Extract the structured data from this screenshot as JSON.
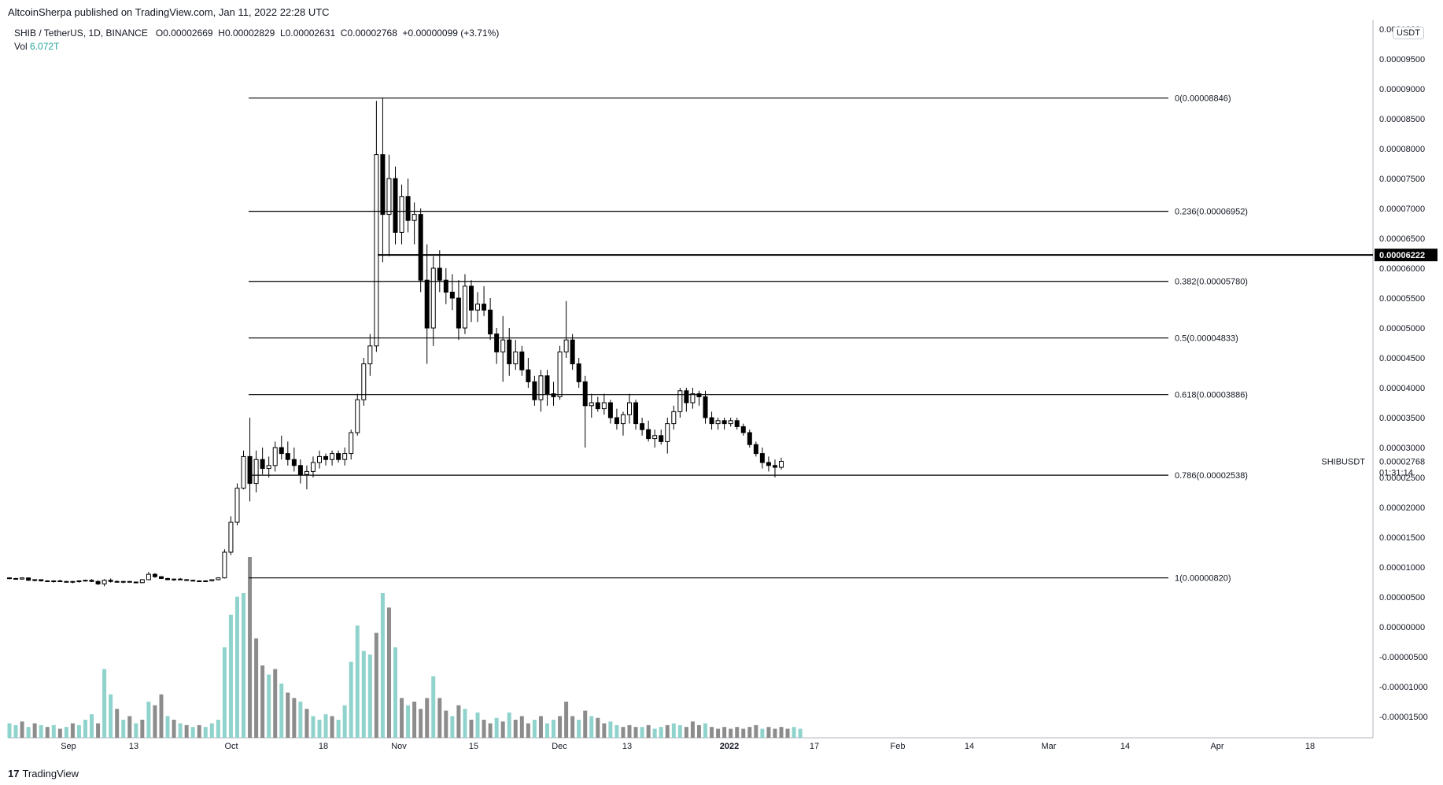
{
  "header": {
    "published": "AltcoinSherpa published on TradingView.com, Jan 11, 2022 22:28 UTC"
  },
  "legend": {
    "symbol": "SHIB / TetherUS, 1D, BINANCE",
    "o_label": "O",
    "o": "0.00002669",
    "h_label": "H",
    "h": "0.00002829",
    "l_label": "L",
    "l": "0.00002631",
    "c_label": "C",
    "c": "0.00002768",
    "change": "+0.00000099 (+3.71%)",
    "vol_label": "Vol",
    "vol": "6.072T"
  },
  "currency_badge": "USDT",
  "footer": {
    "logo_text": "TradingView"
  },
  "colors": {
    "up_volume": "#8fd3cc",
    "down_volume": "#8c8c8c",
    "candle_up": "#ffffff",
    "candle_down": "#000000",
    "line": "#000000",
    "price_tag_bg": "#000000"
  },
  "chart_data": {
    "type": "candlestick",
    "symbol_label": "SHIBUSDT",
    "last_price": "0.00002768",
    "countdown": "01:31:14",
    "price_tag": "0.00006222",
    "horizontal_line_price": 6.222e-05,
    "ylim": [
      -1.85e-05,
      1.05e-05
    ],
    "y_ticks": [
      "0.0001000",
      "0.00009500",
      "0.00009000",
      "0.00008500",
      "0.00008000",
      "0.00007500",
      "0.00007000",
      "0.00006500",
      "0.00006000",
      "0.00005500",
      "0.00005000",
      "0.00004500",
      "0.00004000",
      "0.00003500",
      "0.00003000",
      "0.00002500",
      "0.00002000",
      "0.00001500",
      "0.00001000",
      "0.00000500",
      "0.00000000",
      "-0.00000500",
      "-0.00001000",
      "-0.00001500"
    ],
    "x_ticks": [
      "Sep",
      "13",
      "Oct",
      "18",
      "Nov",
      "15",
      "Dec",
      "13",
      "2022",
      "17",
      "Feb",
      "14",
      "Mar",
      "14",
      "Apr",
      "18"
    ],
    "fib_levels": [
      {
        "label": "0(0.00008846)",
        "price": 8.846e-05
      },
      {
        "label": "0.236(0.00006952)",
        "price": 6.952e-05
      },
      {
        "label": "0.382(0.00005780)",
        "price": 5.78e-05
      },
      {
        "label": "0.5(0.00004833)",
        "price": 4.833e-05
      },
      {
        "label": "0.618(0.00003886)",
        "price": 3.886e-05
      },
      {
        "label": "0.786(0.00002538)",
        "price": 2.538e-05
      },
      {
        "label": "1(0.00000820)",
        "price": 8.2e-06
      }
    ],
    "candles_sample": [
      {
        "o": 8.2e-06,
        "h": 8.3e-06,
        "l": 8e-06,
        "c": 8.1e-06
      },
      {
        "o": 8.1e-06,
        "h": 8.2e-06,
        "l": 7.9e-06,
        "c": 8e-06
      },
      {
        "o": 8e-06,
        "h": 8.3e-06,
        "l": 7.9e-06,
        "c": 8.2e-06
      },
      {
        "o": 8.2e-06,
        "h": 8.2e-06,
        "l": 7.7e-06,
        "c": 7.8e-06
      },
      {
        "o": 7.8e-06,
        "h": 8e-06,
        "l": 7.6e-06,
        "c": 7.9e-06
      },
      {
        "o": 7.9e-06,
        "h": 7.9e-06,
        "l": 7.6e-06,
        "c": 7.7e-06
      },
      {
        "o": 7.7e-06,
        "h": 7.8e-06,
        "l": 7.5e-06,
        "c": 7.6e-06
      },
      {
        "o": 7.6e-06,
        "h": 7.8e-06,
        "l": 7.4e-06,
        "c": 7.7e-06
      },
      {
        "o": 7.7e-06,
        "h": 7.9e-06,
        "l": 7.5e-06,
        "c": 7.6e-06
      },
      {
        "o": 7.6e-06,
        "h": 7.7e-06,
        "l": 7.4e-06,
        "c": 7.5e-06
      },
      {
        "o": 7.5e-06,
        "h": 7.7e-06,
        "l": 7.3e-06,
        "c": 7.6e-06
      },
      {
        "o": 7.6e-06,
        "h": 7.8e-06,
        "l": 7.4e-06,
        "c": 7.7e-06
      },
      {
        "o": 7.7e-06,
        "h": 7.9e-06,
        "l": 7.6e-06,
        "c": 7.8e-06
      },
      {
        "o": 7.8e-06,
        "h": 8e-06,
        "l": 7.5e-06,
        "c": 7.6e-06
      },
      {
        "o": 7.6e-06,
        "h": 7.8e-06,
        "l": 7e-06,
        "c": 7.2e-06
      },
      {
        "o": 7.2e-06,
        "h": 8e-06,
        "l": 6.8e-06,
        "c": 7.8e-06
      },
      {
        "o": 7.8e-06,
        "h": 8.1e-06,
        "l": 7.4e-06,
        "c": 7.6e-06
      },
      {
        "o": 7.6e-06,
        "h": 7.8e-06,
        "l": 7.4e-06,
        "c": 7.5e-06
      },
      {
        "o": 7.5e-06,
        "h": 7.7e-06,
        "l": 7.3e-06,
        "c": 7.6e-06
      },
      {
        "o": 7.6e-06,
        "h": 7.7e-06,
        "l": 7.4e-06,
        "c": 7.5e-06
      },
      {
        "o": 7.5e-06,
        "h": 7.6e-06,
        "l": 7.3e-06,
        "c": 7.4e-06
      },
      {
        "o": 7.4e-06,
        "h": 8e-06,
        "l": 7.3e-06,
        "c": 7.9e-06
      },
      {
        "o": 7.9e-06,
        "h": 9.2e-06,
        "l": 7.8e-06,
        "c": 8.8e-06
      },
      {
        "o": 8.8e-06,
        "h": 9e-06,
        "l": 8.2e-06,
        "c": 8.4e-06
      },
      {
        "o": 8.4e-06,
        "h": 8.5e-06,
        "l": 8e-06,
        "c": 8.1e-06
      },
      {
        "o": 8.1e-06,
        "h": 8.2e-06,
        "l": 7.8e-06,
        "c": 7.9e-06
      },
      {
        "o": 7.9e-06,
        "h": 8.1e-06,
        "l": 7.7e-06,
        "c": 8e-06
      },
      {
        "o": 8e-06,
        "h": 8.2e-06,
        "l": 7.8e-06,
        "c": 7.9e-06
      },
      {
        "o": 7.9e-06,
        "h": 8e-06,
        "l": 7.7e-06,
        "c": 7.8e-06
      },
      {
        "o": 7.8e-06,
        "h": 7.9e-06,
        "l": 7.6e-06,
        "c": 7.7e-06
      },
      {
        "o": 7.7e-06,
        "h": 7.8e-06,
        "l": 7.5e-06,
        "c": 7.6e-06
      },
      {
        "o": 7.6e-06,
        "h": 7.8e-06,
        "l": 7.5e-06,
        "c": 7.7e-06
      },
      {
        "o": 7.7e-06,
        "h": 8e-06,
        "l": 7.6e-06,
        "c": 7.9e-06
      },
      {
        "o": 7.9e-06,
        "h": 8.3e-06,
        "l": 7.8e-06,
        "c": 8.2e-06
      },
      {
        "o": 8.2e-06,
        "h": 1.3e-05,
        "l": 8.1e-06,
        "c": 1.25e-05
      },
      {
        "o": 1.25e-05,
        "h": 1.85e-05,
        "l": 1.2e-05,
        "c": 1.75e-05
      },
      {
        "o": 1.75e-05,
        "h": 2.4e-05,
        "l": 1.7e-05,
        "c": 2.32e-05
      },
      {
        "o": 2.32e-05,
        "h": 2.95e-05,
        "l": 2.3e-05,
        "c": 2.85e-05
      },
      {
        "o": 2.85e-05,
        "h": 3.5e-05,
        "l": 2.1e-05,
        "c": 2.4e-05
      },
      {
        "o": 2.4e-05,
        "h": 2.95e-05,
        "l": 2.25e-05,
        "c": 2.8e-05
      },
      {
        "o": 2.8e-05,
        "h": 3e-05,
        "l": 2.55e-05,
        "c": 2.65e-05
      },
      {
        "o": 2.65e-05,
        "h": 2.85e-05,
        "l": 2.5e-05,
        "c": 2.7e-05
      },
      {
        "o": 2.7e-05,
        "h": 3.1e-05,
        "l": 2.6e-05,
        "c": 3e-05
      },
      {
        "o": 3e-05,
        "h": 3.2e-05,
        "l": 2.8e-05,
        "c": 2.9e-05
      },
      {
        "o": 2.9e-05,
        "h": 3.1e-05,
        "l": 2.7e-05,
        "c": 2.8e-05
      },
      {
        "o": 2.8e-05,
        "h": 3e-05,
        "l": 2.6e-05,
        "c": 2.7e-05
      },
      {
        "o": 2.7e-05,
        "h": 2.8e-05,
        "l": 2.4e-05,
        "c": 2.55e-05
      },
      {
        "o": 2.55e-05,
        "h": 2.7e-05,
        "l": 2.3e-05,
        "c": 2.6e-05
      },
      {
        "o": 2.6e-05,
        "h": 2.85e-05,
        "l": 2.5e-05,
        "c": 2.75e-05
      },
      {
        "o": 2.75e-05,
        "h": 2.95e-05,
        "l": 2.65e-05,
        "c": 2.85e-05
      },
      {
        "o": 2.85e-05,
        "h": 2.9e-05,
        "l": 2.7e-05,
        "c": 2.8e-05
      },
      {
        "o": 2.8e-05,
        "h": 2.95e-05,
        "l": 2.7e-05,
        "c": 2.9e-05
      },
      {
        "o": 2.9e-05,
        "h": 2.95e-05,
        "l": 2.75e-05,
        "c": 2.8e-05
      },
      {
        "o": 2.8e-05,
        "h": 3e-05,
        "l": 2.7e-05,
        "c": 2.9e-05
      },
      {
        "o": 2.9e-05,
        "h": 3.3e-05,
        "l": 2.8e-05,
        "c": 3.25e-05
      },
      {
        "o": 3.25e-05,
        "h": 3.9e-05,
        "l": 3.2e-05,
        "c": 3.8e-05
      },
      {
        "o": 3.8e-05,
        "h": 4.5e-05,
        "l": 3.7e-05,
        "c": 4.4e-05
      },
      {
        "o": 4.4e-05,
        "h": 4.9e-05,
        "l": 4.2e-05,
        "c": 4.7e-05
      },
      {
        "o": 4.7e-05,
        "h": 8.8e-05,
        "l": 4.6e-05,
        "c": 7.9e-05
      },
      {
        "o": 7.9e-05,
        "h": 8.85e-05,
        "l": 6.1e-05,
        "c": 6.9e-05
      },
      {
        "o": 6.9e-05,
        "h": 7.9e-05,
        "l": 6.2e-05,
        "c": 7.5e-05
      },
      {
        "o": 7.5e-05,
        "h": 7.7e-05,
        "l": 6.4e-05,
        "c": 6.6e-05
      },
      {
        "o": 6.6e-05,
        "h": 7.4e-05,
        "l": 6.4e-05,
        "c": 7.2e-05
      },
      {
        "o": 7.2e-05,
        "h": 7.5e-05,
        "l": 6.6e-05,
        "c": 6.8e-05
      },
      {
        "o": 6.8e-05,
        "h": 7.1e-05,
        "l": 6.4e-05,
        "c": 6.9e-05
      },
      {
        "o": 6.9e-05,
        "h": 7e-05,
        "l": 5.6e-05,
        "c": 5.8e-05
      },
      {
        "o": 5.8e-05,
        "h": 6.4e-05,
        "l": 4.4e-05,
        "c": 5e-05
      },
      {
        "o": 5e-05,
        "h": 6.2e-05,
        "l": 4.7e-05,
        "c": 6e-05
      },
      {
        "o": 6e-05,
        "h": 6.3e-05,
        "l": 5.6e-05,
        "c": 5.8e-05
      },
      {
        "o": 5.8e-05,
        "h": 6e-05,
        "l": 5.4e-05,
        "c": 5.6e-05
      },
      {
        "o": 5.6e-05,
        "h": 5.9e-05,
        "l": 5.3e-05,
        "c": 5.5e-05
      },
      {
        "o": 5.5e-05,
        "h": 5.8e-05,
        "l": 4.8e-05,
        "c": 5e-05
      },
      {
        "o": 5e-05,
        "h": 5.9e-05,
        "l": 4.9e-05,
        "c": 5.7e-05
      },
      {
        "o": 5.7e-05,
        "h": 5.8e-05,
        "l": 5.1e-05,
        "c": 5.3e-05
      },
      {
        "o": 5.3e-05,
        "h": 5.6e-05,
        "l": 5.1e-05,
        "c": 5.4e-05
      },
      {
        "o": 5.4e-05,
        "h": 5.7e-05,
        "l": 5.2e-05,
        "c": 5.3e-05
      },
      {
        "o": 5.3e-05,
        "h": 5.5e-05,
        "l": 4.8e-05,
        "c": 4.9e-05
      },
      {
        "o": 4.9e-05,
        "h": 5e-05,
        "l": 4.4e-05,
        "c": 4.6e-05
      },
      {
        "o": 4.6e-05,
        "h": 5.2e-05,
        "l": 4.1e-05,
        "c": 4.8e-05
      },
      {
        "o": 4.8e-05,
        "h": 5e-05,
        "l": 4.2e-05,
        "c": 4.4e-05
      },
      {
        "o": 4.4e-05,
        "h": 4.8e-05,
        "l": 4.3e-05,
        "c": 4.6e-05
      },
      {
        "o": 4.6e-05,
        "h": 4.7e-05,
        "l": 4.2e-05,
        "c": 4.3e-05
      },
      {
        "o": 4.3e-05,
        "h": 4.5e-05,
        "l": 4e-05,
        "c": 4.1e-05
      },
      {
        "o": 4.1e-05,
        "h": 4.2e-05,
        "l": 3.7e-05,
        "c": 3.8e-05
      },
      {
        "o": 3.8e-05,
        "h": 4.3e-05,
        "l": 3.6e-05,
        "c": 4.2e-05
      },
      {
        "o": 4.2e-05,
        "h": 4.3e-05,
        "l": 3.7e-05,
        "c": 3.9e-05
      },
      {
        "o": 3.9e-05,
        "h": 4.1e-05,
        "l": 3.7e-05,
        "c": 3.85e-05
      },
      {
        "o": 3.85e-05,
        "h": 4.7e-05,
        "l": 3.8e-05,
        "c": 4.6e-05
      },
      {
        "o": 4.6e-05,
        "h": 5.45e-05,
        "l": 4.5e-05,
        "c": 4.8e-05
      },
      {
        "o": 4.8e-05,
        "h": 4.9e-05,
        "l": 4.3e-05,
        "c": 4.4e-05
      },
      {
        "o": 4.4e-05,
        "h": 4.5e-05,
        "l": 4e-05,
        "c": 4.1e-05
      },
      {
        "o": 4.1e-05,
        "h": 4.2e-05,
        "l": 3e-05,
        "c": 3.7e-05
      },
      {
        "o": 3.7e-05,
        "h": 3.9e-05,
        "l": 3.5e-05,
        "c": 3.75e-05
      },
      {
        "o": 3.75e-05,
        "h": 3.85e-05,
        "l": 3.6e-05,
        "c": 3.65e-05
      },
      {
        "o": 3.65e-05,
        "h": 3.9e-05,
        "l": 3.55e-05,
        "c": 3.75e-05
      },
      {
        "o": 3.75e-05,
        "h": 3.8e-05,
        "l": 3.4e-05,
        "c": 3.5e-05
      },
      {
        "o": 3.5e-05,
        "h": 3.65e-05,
        "l": 3.3e-05,
        "c": 3.4e-05
      },
      {
        "o": 3.4e-05,
        "h": 3.6e-05,
        "l": 3.2e-05,
        "c": 3.55e-05
      },
      {
        "o": 3.55e-05,
        "h": 3.9e-05,
        "l": 3.4e-05,
        "c": 3.75e-05
      },
      {
        "o": 3.75e-05,
        "h": 3.8e-05,
        "l": 3.3e-05,
        "c": 3.4e-05
      },
      {
        "o": 3.4e-05,
        "h": 3.5e-05,
        "l": 3.2e-05,
        "c": 3.3e-05
      },
      {
        "o": 3.3e-05,
        "h": 3.45e-05,
        "l": 3.1e-05,
        "c": 3.15e-05
      },
      {
        "o": 3.15e-05,
        "h": 3.3e-05,
        "l": 3e-05,
        "c": 3.2e-05
      },
      {
        "o": 3.2e-05,
        "h": 3.3e-05,
        "l": 3.05e-05,
        "c": 3.1e-05
      },
      {
        "o": 3.1e-05,
        "h": 3.5e-05,
        "l": 2.9e-05,
        "c": 3.4e-05
      },
      {
        "o": 3.4e-05,
        "h": 3.7e-05,
        "l": 3.3e-05,
        "c": 3.6e-05
      },
      {
        "o": 3.6e-05,
        "h": 4e-05,
        "l": 3.5e-05,
        "c": 3.95e-05
      },
      {
        "o": 3.95e-05,
        "h": 4e-05,
        "l": 3.6e-05,
        "c": 3.75e-05
      },
      {
        "o": 3.75e-05,
        "h": 4e-05,
        "l": 3.65e-05,
        "c": 3.9e-05
      },
      {
        "o": 3.9e-05,
        "h": 3.95e-05,
        "l": 3.7e-05,
        "c": 3.85e-05
      },
      {
        "o": 3.85e-05,
        "h": 3.95e-05,
        "l": 3.4e-05,
        "c": 3.5e-05
      },
      {
        "o": 3.5e-05,
        "h": 3.6e-05,
        "l": 3.3e-05,
        "c": 3.4e-05
      },
      {
        "o": 3.4e-05,
        "h": 3.5e-05,
        "l": 3.3e-05,
        "c": 3.45e-05
      },
      {
        "o": 3.45e-05,
        "h": 3.5e-05,
        "l": 3.3e-05,
        "c": 3.4e-05
      },
      {
        "o": 3.4e-05,
        "h": 3.5e-05,
        "l": 3.35e-05,
        "c": 3.45e-05
      },
      {
        "o": 3.45e-05,
        "h": 3.5e-05,
        "l": 3.3e-05,
        "c": 3.35e-05
      },
      {
        "o": 3.35e-05,
        "h": 3.4e-05,
        "l": 3.2e-05,
        "c": 3.25e-05
      },
      {
        "o": 3.25e-05,
        "h": 3.3e-05,
        "l": 3e-05,
        "c": 3.05e-05
      },
      {
        "o": 3.05e-05,
        "h": 3.1e-05,
        "l": 2.85e-05,
        "c": 2.9e-05
      },
      {
        "o": 2.9e-05,
        "h": 3e-05,
        "l": 2.65e-05,
        "c": 2.75e-05
      },
      {
        "o": 2.75e-05,
        "h": 2.85e-05,
        "l": 2.6e-05,
        "c": 2.7e-05
      },
      {
        "o": 2.7e-05,
        "h": 2.8e-05,
        "l": 2.5e-05,
        "c": 2.67e-05
      },
      {
        "o": 2.67e-05,
        "h": 2.83e-05,
        "l": 2.63e-05,
        "c": 2.77e-05
      }
    ],
    "volume_bars_relative": [
      0.08,
      0.07,
      0.09,
      0.06,
      0.08,
      0.07,
      0.06,
      0.07,
      0.05,
      0.06,
      0.08,
      0.07,
      0.1,
      0.13,
      0.08,
      0.38,
      0.24,
      0.16,
      0.1,
      0.12,
      0.08,
      0.1,
      0.2,
      0.18,
      0.24,
      0.12,
      0.1,
      0.08,
      0.07,
      0.06,
      0.07,
      0.06,
      0.08,
      0.1,
      0.5,
      0.68,
      0.78,
      0.8,
      1.0,
      0.55,
      0.4,
      0.35,
      0.38,
      0.3,
      0.25,
      0.22,
      0.2,
      0.16,
      0.12,
      0.1,
      0.13,
      0.12,
      0.1,
      0.18,
      0.42,
      0.62,
      0.48,
      0.46,
      0.58,
      0.8,
      0.72,
      0.5,
      0.22,
      0.18,
      0.2,
      0.16,
      0.22,
      0.34,
      0.22,
      0.15,
      0.12,
      0.18,
      0.16,
      0.1,
      0.14,
      0.1,
      0.08,
      0.11,
      0.09,
      0.14,
      0.1,
      0.12,
      0.08,
      0.1,
      0.12,
      0.08,
      0.1,
      0.12,
      0.2,
      0.12,
      0.1,
      0.15,
      0.12,
      0.11,
      0.08,
      0.09,
      0.07,
      0.06,
      0.07,
      0.06,
      0.06,
      0.07,
      0.05,
      0.06,
      0.07,
      0.08,
      0.07,
      0.06,
      0.09,
      0.07,
      0.08,
      0.06,
      0.05,
      0.06,
      0.05,
      0.06,
      0.05,
      0.06,
      0.07,
      0.05,
      0.06,
      0.05,
      0.06,
      0.05,
      0.06,
      0.05
    ],
    "volume_up_flags": [
      1,
      1,
      0,
      1,
      0,
      1,
      0,
      1,
      0,
      1,
      0,
      1,
      1,
      1,
      0,
      1,
      1,
      0,
      1,
      0,
      1,
      0,
      1,
      0,
      0,
      1,
      0,
      1,
      0,
      1,
      0,
      1,
      1,
      1,
      1,
      1,
      1,
      1,
      0,
      0,
      0,
      1,
      0,
      1,
      0,
      0,
      1,
      0,
      1,
      1,
      1,
      0,
      1,
      1,
      1,
      1,
      1,
      1,
      0,
      1,
      0,
      1,
      0,
      1,
      0,
      0,
      0,
      1,
      0,
      0,
      1,
      0,
      1,
      0,
      1,
      0,
      0,
      1,
      0,
      1,
      0,
      0,
      0,
      1,
      0,
      1,
      1,
      0,
      0,
      0,
      1,
      0,
      1,
      0,
      0,
      1,
      1,
      0,
      0,
      0,
      1,
      0,
      1,
      1,
      0,
      1,
      1,
      0,
      0,
      0,
      1,
      0,
      0,
      0,
      0,
      0,
      0,
      0,
      0,
      1,
      0,
      0,
      0,
      0,
      1,
      1
    ]
  }
}
